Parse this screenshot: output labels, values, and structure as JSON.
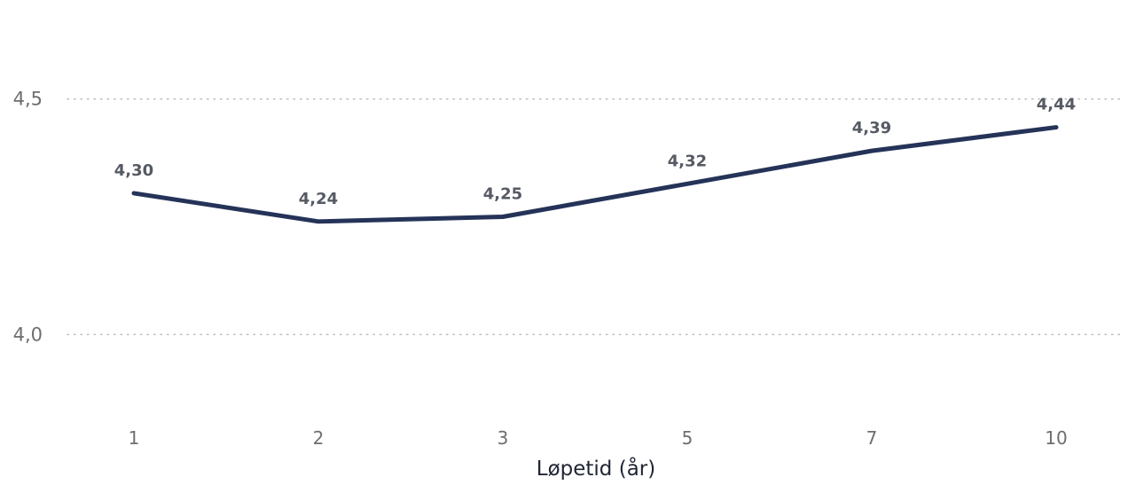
{
  "chart_data": {
    "type": "line",
    "title": "",
    "xlabel": "Løpetid (år)",
    "ylabel": "",
    "categories": [
      "1",
      "2",
      "3",
      "5",
      "7",
      "10"
    ],
    "series": [
      {
        "values": [
          4.3,
          4.24,
          4.25,
          4.32,
          4.39,
          4.44
        ],
        "labels": [
          "4,30",
          "4,24",
          "4,25",
          "4,32",
          "4,39",
          "4,44"
        ]
      }
    ],
    "y_ticks": [
      {
        "value": 4.0,
        "label": "4,0"
      },
      {
        "value": 4.5,
        "label": "4,5"
      }
    ],
    "ylim": [
      3.865,
      4.635
    ],
    "grid": true,
    "legend": "none",
    "colors": {
      "line": "#253358",
      "gridline": "#b9b9b9",
      "tick_text": "#6e6e6e",
      "label_text": "#555a63",
      "axis_title": "#1f2533"
    }
  }
}
